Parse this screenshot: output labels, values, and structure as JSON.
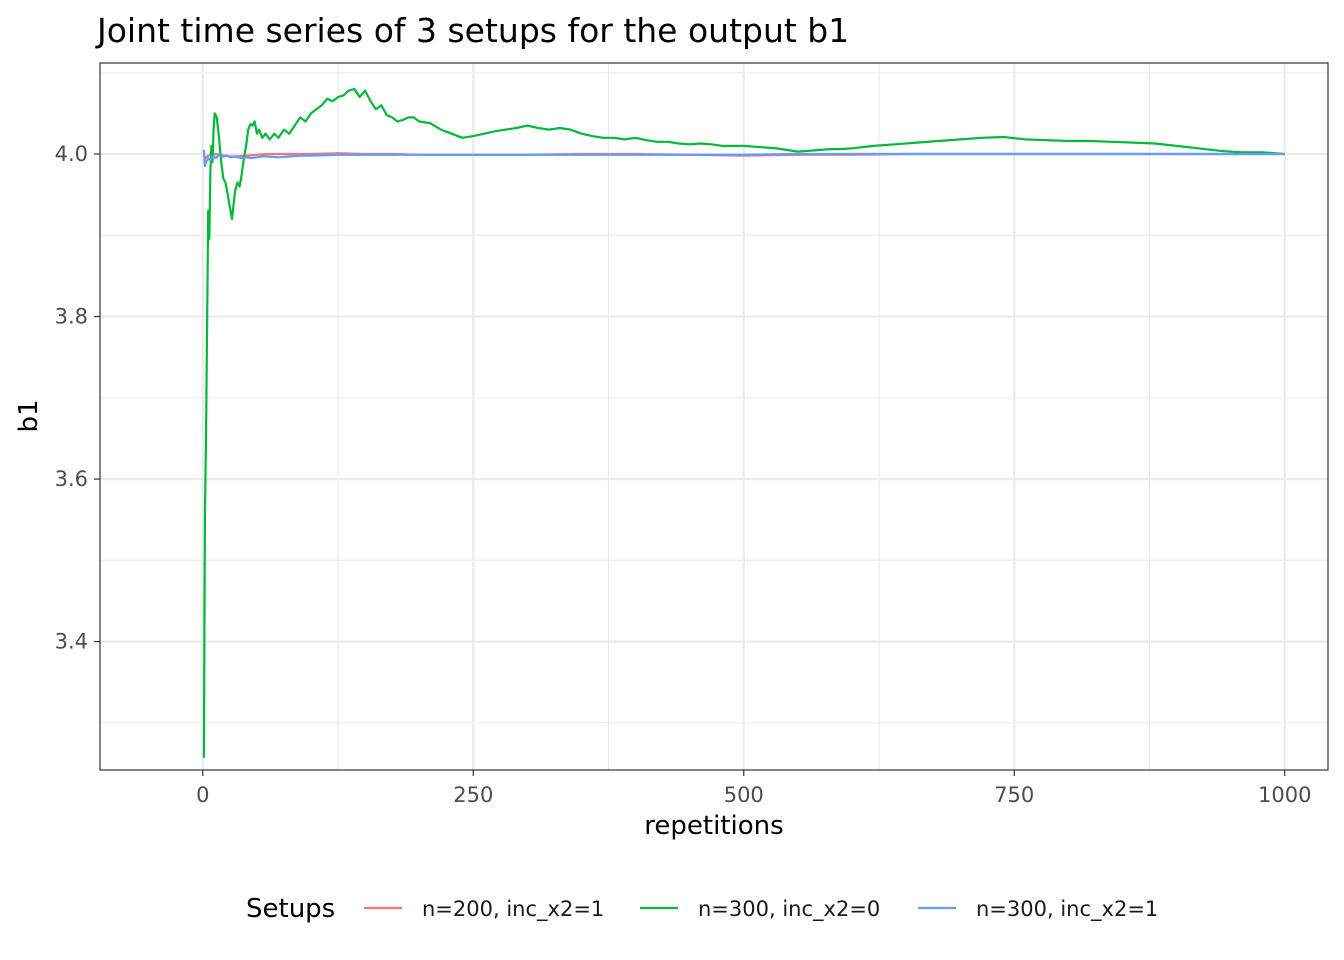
{
  "chart_data": {
    "type": "line",
    "title": "Joint time series of 3 setups for the output b1",
    "xlabel": "repetitions",
    "ylabel": "b1",
    "xlim": [
      -95,
      1040
    ],
    "ylim": [
      3.242,
      4.112
    ],
    "x_ticks": [
      0,
      250,
      500,
      750,
      1000
    ],
    "x_tick_labels": [
      "0",
      "250",
      "500",
      "750",
      "1000"
    ],
    "y_ticks": [
      3.4,
      3.6,
      3.8,
      4.0
    ],
    "y_tick_labels": [
      "3.4",
      "3.6",
      "3.8",
      "4.0"
    ],
    "grid": true,
    "legend": {
      "title": "Setups",
      "position": "bottom"
    },
    "series": [
      {
        "name": "n=200, inc_x2=1",
        "color": "#F8766D",
        "x": [
          1,
          3,
          5,
          8,
          12,
          16,
          20,
          25,
          30,
          40,
          50,
          60,
          75,
          100,
          125,
          150,
          175,
          200,
          250,
          300,
          350,
          400,
          450,
          500,
          550,
          600,
          650,
          700,
          750,
          800,
          850,
          900,
          950,
          1000
        ],
        "y": [
          3.992,
          3.996,
          3.998,
          3.999,
          4.0,
          3.999,
          3.998,
          3.997,
          3.997,
          3.998,
          3.999,
          4.0,
          4.0,
          4.0,
          4.001,
          4.0,
          4.0,
          3.999,
          3.999,
          3.999,
          4.0,
          4.0,
          3.999,
          3.998,
          3.999,
          3.999,
          4.0,
          4.0,
          4.0,
          4.0,
          4.0,
          4.0,
          4.0,
          4.0
        ]
      },
      {
        "name": "n=300, inc_x2=0",
        "color": "#00BA38",
        "x": [
          1,
          2,
          3,
          5,
          6,
          7,
          8,
          9,
          10,
          11,
          13,
          15,
          17,
          19,
          21,
          23,
          25,
          27,
          29,
          30,
          32,
          34,
          36,
          38,
          40,
          42,
          44,
          46,
          48,
          50,
          52,
          55,
          58,
          62,
          66,
          70,
          75,
          80,
          85,
          90,
          95,
          100,
          105,
          110,
          115,
          120,
          125,
          130,
          135,
          140,
          145,
          150,
          155,
          160,
          165,
          170,
          175,
          180,
          185,
          190,
          195,
          200,
          210,
          220,
          230,
          240,
          250,
          260,
          270,
          280,
          290,
          300,
          310,
          320,
          330,
          340,
          350,
          360,
          370,
          380,
          390,
          400,
          410,
          420,
          430,
          440,
          450,
          460,
          470,
          480,
          490,
          500,
          510,
          520,
          530,
          540,
          550,
          560,
          570,
          580,
          590,
          600,
          620,
          640,
          660,
          680,
          700,
          720,
          740,
          760,
          780,
          800,
          820,
          840,
          860,
          880,
          900,
          920,
          940,
          960,
          980,
          1000
        ],
        "y": [
          3.257,
          3.55,
          3.65,
          3.93,
          3.895,
          3.98,
          4.01,
          3.99,
          4.03,
          4.05,
          4.045,
          4.02,
          3.99,
          3.97,
          3.965,
          3.95,
          3.935,
          3.92,
          3.945,
          3.955,
          3.965,
          3.96,
          3.975,
          3.995,
          4.01,
          4.03,
          4.037,
          4.035,
          4.04,
          4.025,
          4.03,
          4.02,
          4.025,
          4.018,
          4.025,
          4.02,
          4.03,
          4.025,
          4.035,
          4.045,
          4.04,
          4.05,
          4.055,
          4.06,
          4.068,
          4.065,
          4.07,
          4.072,
          4.078,
          4.08,
          4.07,
          4.078,
          4.065,
          4.055,
          4.06,
          4.048,
          4.045,
          4.04,
          4.042,
          4.045,
          4.045,
          4.04,
          4.038,
          4.03,
          4.025,
          4.02,
          4.022,
          4.025,
          4.028,
          4.03,
          4.032,
          4.035,
          4.032,
          4.03,
          4.032,
          4.03,
          4.025,
          4.022,
          4.02,
          4.02,
          4.018,
          4.02,
          4.017,
          4.015,
          4.015,
          4.013,
          4.012,
          4.013,
          4.012,
          4.01,
          4.01,
          4.01,
          4.009,
          4.008,
          4.007,
          4.005,
          4.003,
          4.004,
          4.005,
          4.006,
          4.006,
          4.007,
          4.01,
          4.012,
          4.014,
          4.016,
          4.018,
          4.02,
          4.021,
          4.018,
          4.017,
          4.016,
          4.016,
          4.015,
          4.014,
          4.013,
          4.01,
          4.007,
          4.004,
          4.002,
          4.002,
          4.0
        ]
      },
      {
        "name": "n=300, inc_x2=1",
        "color": "#619CFF",
        "x": [
          1,
          2,
          3,
          5,
          7,
          9,
          12,
          15,
          18,
          22,
          26,
          30,
          35,
          40,
          45,
          50,
          55,
          60,
          70,
          80,
          90,
          100,
          125,
          150,
          175,
          200,
          225,
          250,
          300,
          350,
          400,
          450,
          500,
          550,
          600,
          650,
          700,
          750,
          800,
          850,
          900,
          950,
          1000
        ],
        "y": [
          4.005,
          3.985,
          3.99,
          3.995,
          3.992,
          3.998,
          3.995,
          3.999,
          3.997,
          3.998,
          3.996,
          3.997,
          3.995,
          3.996,
          3.995,
          3.996,
          3.997,
          3.997,
          3.996,
          3.997,
          3.998,
          3.998,
          3.999,
          3.999,
          3.999,
          3.999,
          3.999,
          3.999,
          3.999,
          3.999,
          3.999,
          3.999,
          3.999,
          4.0,
          4.0,
          4.0,
          4.0,
          4.0,
          4.0,
          4.0,
          4.0,
          4.0,
          4.0
        ]
      }
    ]
  }
}
